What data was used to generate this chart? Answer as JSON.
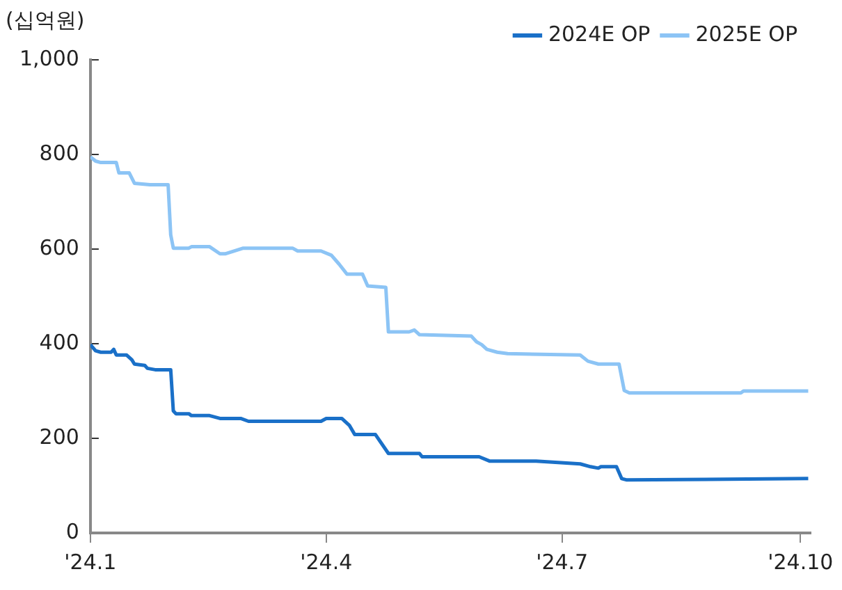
{
  "chart_data": {
    "type": "line",
    "ylabel": "(십억원)",
    "legend": "top right",
    "grid": false,
    "marker": "none",
    "line_style": "solid",
    "xlim": [
      "2024-01-01",
      "2024-10-05"
    ],
    "xticks": [
      {
        "value": "2024-01-01",
        "label": "'24.1"
      },
      {
        "value": "2024-04-01",
        "label": "'24.4"
      },
      {
        "value": "2024-07-01",
        "label": "'24.7"
      },
      {
        "value": "2024-10-01",
        "label": "'24.10"
      }
    ],
    "ylim": [
      0,
      1000
    ],
    "yticks": [
      0,
      200,
      400,
      600,
      800,
      {
        "value": 1000,
        "label": "1,000"
      }
    ],
    "series": [
      {
        "name": "2024E OP",
        "color": "#1a70c8",
        "x": [
          "2024-01-01",
          "2024-01-03",
          "2024-01-05",
          "2024-01-09",
          "2024-01-10",
          "2024-01-11",
          "2024-01-15",
          "2024-01-17",
          "2024-01-18",
          "2024-01-22",
          "2024-01-23",
          "2024-01-26",
          "2024-02-01",
          "2024-02-02",
          "2024-02-03",
          "2024-02-08",
          "2024-02-09",
          "2024-02-16",
          "2024-02-20",
          "2024-02-28",
          "2024-03-02",
          "2024-03-30",
          "2024-04-01",
          "2024-04-07",
          "2024-04-10",
          "2024-04-12",
          "2024-04-20",
          "2024-04-25",
          "2024-05-07",
          "2024-05-08",
          "2024-05-30",
          "2024-06-03",
          "2024-06-21",
          "2024-07-08",
          "2024-07-12",
          "2024-07-15",
          "2024-07-16",
          "2024-07-22",
          "2024-07-24",
          "2024-07-26",
          "2024-10-04"
        ],
        "values": [
          398,
          385,
          382,
          382,
          388,
          376,
          376,
          366,
          357,
          354,
          348,
          345,
          345,
          258,
          252,
          252,
          248,
          248,
          242,
          242,
          236,
          236,
          242,
          242,
          227,
          208,
          208,
          168,
          168,
          161,
          161,
          152,
          152,
          146,
          140,
          137,
          140,
          140,
          115,
          112,
          115
        ]
      },
      {
        "name": "2025E OP",
        "color": "#8cc4f5",
        "x": [
          "2024-01-01",
          "2024-01-03",
          "2024-01-05",
          "2024-01-11",
          "2024-01-12",
          "2024-01-16",
          "2024-01-18",
          "2024-01-24",
          "2024-01-31",
          "2024-02-01",
          "2024-02-02",
          "2024-02-08",
          "2024-02-09",
          "2024-02-16",
          "2024-02-20",
          "2024-02-22",
          "2024-02-29",
          "2024-03-19",
          "2024-03-21",
          "2024-03-30",
          "2024-04-03",
          "2024-04-06",
          "2024-04-09",
          "2024-04-15",
          "2024-04-17",
          "2024-04-24",
          "2024-04-25",
          "2024-05-03",
          "2024-05-05",
          "2024-05-07",
          "2024-05-27",
          "2024-05-29",
          "2024-05-31",
          "2024-06-02",
          "2024-06-06",
          "2024-06-10",
          "2024-07-08",
          "2024-07-11",
          "2024-07-15",
          "2024-07-17",
          "2024-07-23",
          "2024-07-25",
          "2024-07-27",
          "2024-09-08",
          "2024-09-09",
          "2024-10-04"
        ],
        "values": [
          795,
          786,
          783,
          783,
          761,
          761,
          739,
          736,
          736,
          630,
          602,
          602,
          605,
          605,
          590,
          590,
          602,
          602,
          596,
          596,
          587,
          568,
          547,
          547,
          522,
          519,
          425,
          425,
          429,
          419,
          416,
          404,
          398,
          388,
          382,
          379,
          376,
          363,
          357,
          357,
          357,
          301,
          296,
          296,
          300,
          300
        ]
      }
    ]
  }
}
